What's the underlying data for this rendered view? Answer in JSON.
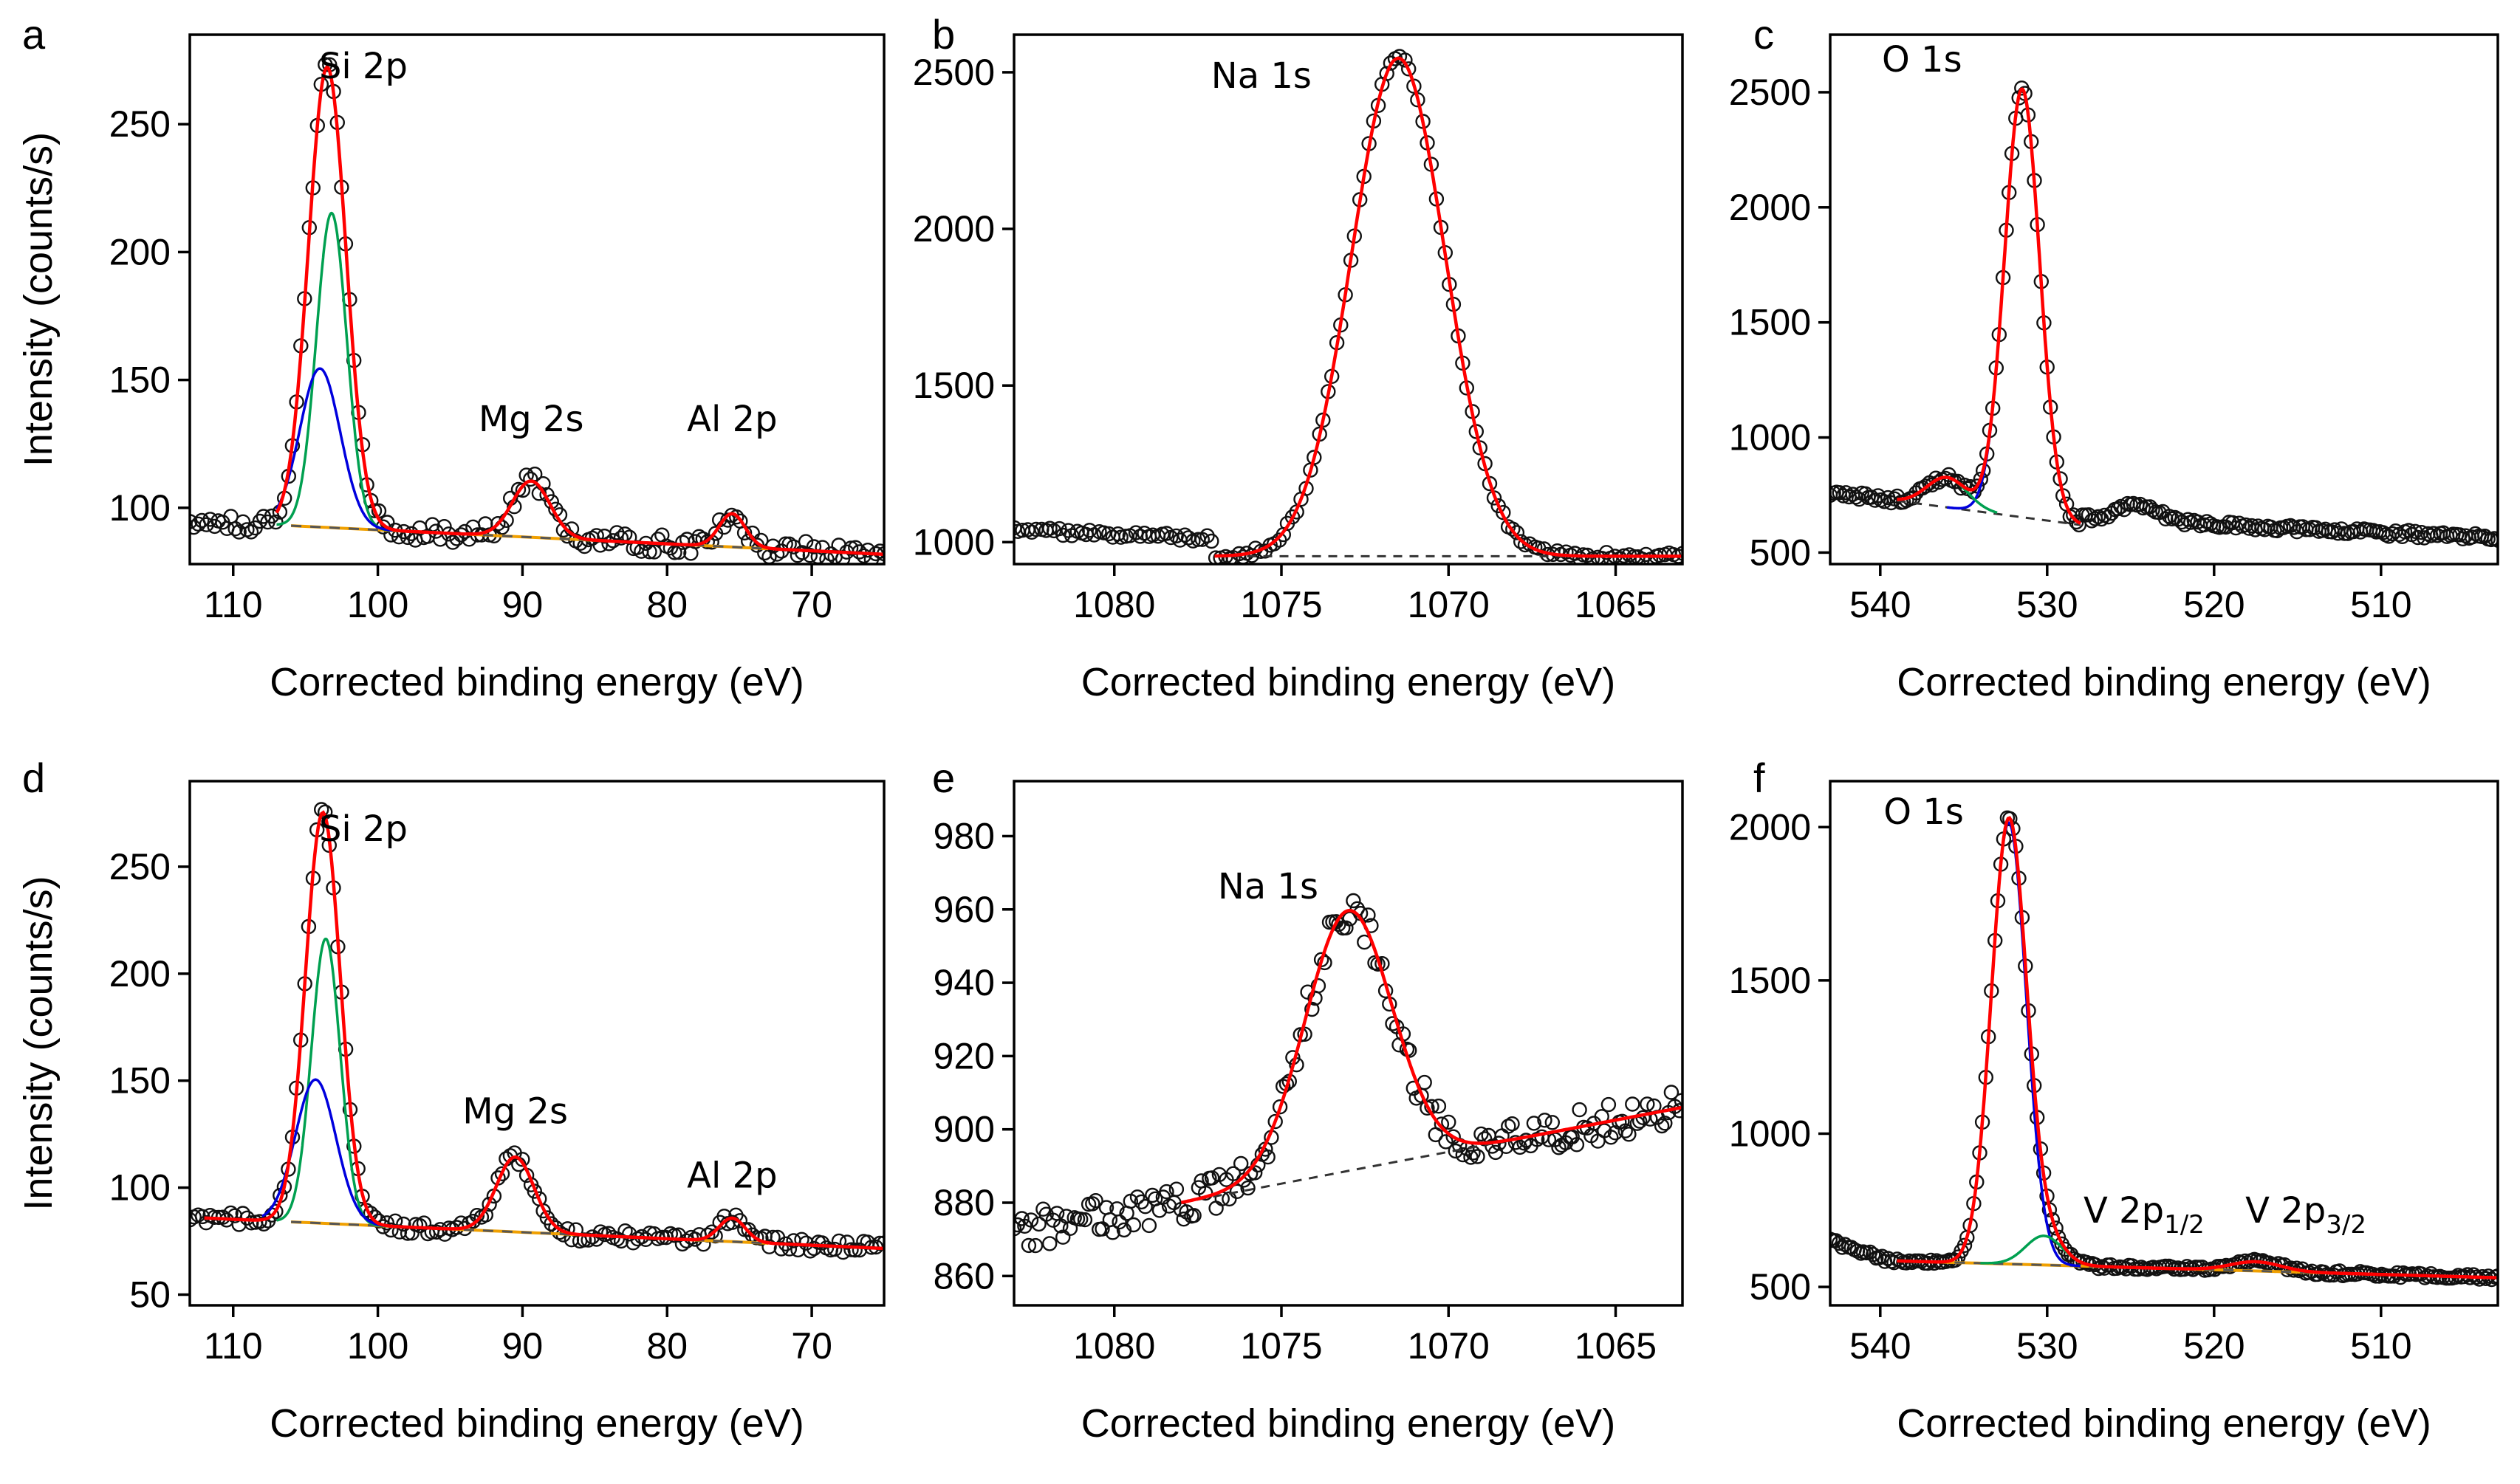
{
  "figure": {
    "y_axis_title": "Intensity (counts/s)",
    "x_axis_title": "Corrected binding energy (eV)"
  },
  "chart_data": [
    {
      "panel": "a",
      "type": "line",
      "xlabel": "Corrected binding energy (eV)",
      "ylabel": "Intensity (counts/s)",
      "xlim": [
        113,
        65
      ],
      "ylim": [
        78,
        285
      ],
      "xticks": [
        110,
        100,
        90,
        80,
        70
      ],
      "yticks": [
        100,
        150,
        200,
        250
      ],
      "annotations": [
        {
          "text": "Si 2p",
          "x": 101,
          "y": 268
        },
        {
          "text": "Mg 2s",
          "x": 89.4,
          "y": 130
        },
        {
          "text": "Al 2p",
          "x": 75.5,
          "y": 130
        }
      ],
      "background": {
        "type": "linear",
        "x": [
          106,
          73
        ],
        "y": [
          93,
          84
        ],
        "colors": [
          "#f0a000",
          "#555555"
        ]
      },
      "components": [
        {
          "name": "Si 2p fit",
          "color": "#ff0000",
          "peaks": [
            {
              "c": 103.5,
              "a": 180,
              "w": 1.3
            },
            {
              "c": 89.4,
              "a": 22,
              "w": 1.3
            },
            {
              "c": 75.5,
              "a": 13,
              "w": 0.9
            }
          ],
          "base": true,
          "xrange": [
            107,
            65
          ]
        },
        {
          "name": "Si 2p component 1",
          "color": "#00a050",
          "peaks": [
            {
              "c": 103.2,
              "a": 123,
              "w": 1.05
            }
          ],
          "base": true,
          "xrange": [
            107,
            99
          ]
        },
        {
          "name": "Si 2p component 2",
          "color": "#0000dd",
          "peaks": [
            {
              "c": 104.0,
              "a": 62,
              "w": 1.4
            }
          ],
          "base": true,
          "xrange": [
            107,
            99
          ]
        },
        {
          "name": "Al 2p component",
          "color": "#b040b0",
          "peaks": [
            {
              "c": 75.5,
              "a": 13,
              "w": 0.9
            }
          ],
          "base": true,
          "xrange": [
            78,
            72
          ]
        }
      ],
      "data_points": {
        "x_from": 113,
        "x_to": 65,
        "count": 170,
        "noise": 3.5,
        "signal": "fit"
      }
    },
    {
      "panel": "b",
      "type": "line",
      "xlabel": "Corrected binding energy (eV)",
      "ylabel": "",
      "xlim": [
        1083,
        1063
      ],
      "ylim": [
        930,
        2620
      ],
      "xticks": [
        1080,
        1075,
        1070,
        1065
      ],
      "yticks": [
        1000,
        1500,
        2000,
        2500
      ],
      "annotations": [
        {
          "text": "Na 1s",
          "x": 1075.6,
          "y": 2450
        }
      ],
      "background": {
        "type": "linear",
        "x": [
          1077,
          1063
        ],
        "y": [
          955,
          955
        ],
        "colors": [
          "#333333"
        ]
      },
      "components": [
        {
          "name": "Na 1s fit",
          "color": "#ff0000",
          "peaks": [
            {
              "c": 1071.5,
              "a": 1590,
              "w": 1.4
            }
          ],
          "base": true,
          "xrange": [
            1077,
            1063
          ]
        }
      ],
      "data_points": {
        "x_from": 1083,
        "x_to": 1063,
        "count": 150,
        "noise": 12,
        "signal": "fit",
        "pre_edge": {
          "x": 1077,
          "y_start": 1040,
          "slope": 14
        }
      }
    },
    {
      "panel": "c",
      "type": "line",
      "xlabel": "Corrected binding energy (eV)",
      "ylabel": "",
      "xlim": [
        543,
        503
      ],
      "ylim": [
        450,
        2750
      ],
      "xticks": [
        540,
        530,
        520,
        510
      ],
      "yticks": [
        500,
        1000,
        1500,
        2000,
        2500
      ],
      "annotations": [
        {
          "text": "O 1s",
          "x": 537.5,
          "y": 2590
        }
      ],
      "background": {
        "type": "linear",
        "x": [
          539,
          528
        ],
        "y": [
          725,
          620
        ],
        "colors": [
          "#333333"
        ]
      },
      "components": [
        {
          "name": "O 1s fit",
          "color": "#ff0000",
          "peaks": [
            {
              "c": 531.5,
              "a": 1860,
              "w": 1.05
            },
            {
              "c": 536.0,
              "a": 130,
              "w": 1.2
            }
          ],
          "base": true,
          "xrange": [
            539,
            528
          ]
        },
        {
          "name": "O 1s component 1",
          "color": "#0000dd",
          "peaks": [
            {
              "c": 531.5,
              "a": 1860,
              "w": 1.05
            }
          ],
          "base": true,
          "xrange": [
            536,
            528
          ]
        },
        {
          "name": "O 1s component 2",
          "color": "#00a050",
          "peaks": [
            {
              "c": 536.0,
              "a": 130,
              "w": 1.2
            }
          ],
          "base": true,
          "xrange": [
            539,
            533
          ]
        }
      ],
      "data_points": {
        "x_from": 543,
        "x_to": 503,
        "count": 210,
        "noise": 15,
        "signal": "fit",
        "extra_peak": {
          "c": 524.5,
          "a": 70,
          "w": 1.2
        },
        "tail": {
          "x": 528,
          "y_start": 650,
          "slope": 3.5
        }
      }
    },
    {
      "panel": "d",
      "type": "line",
      "xlabel": "Corrected binding energy (eV)",
      "ylabel": "Intensity (counts/s)",
      "xlim": [
        113,
        65
      ],
      "ylim": [
        45,
        290
      ],
      "xticks": [
        110,
        100,
        90,
        80,
        70
      ],
      "yticks": [
        50,
        100,
        150,
        200,
        250
      ],
      "annotations": [
        {
          "text": "Si 2p",
          "x": 101,
          "y": 262
        },
        {
          "text": "Mg 2s",
          "x": 90.5,
          "y": 130
        },
        {
          "text": "Al 2p",
          "x": 75.5,
          "y": 100
        }
      ],
      "background": {
        "type": "linear",
        "x": [
          106,
          73
        ],
        "y": [
          84,
          74
        ],
        "colors": [
          "#f0a000",
          "#555555"
        ]
      },
      "components": [
        {
          "name": "Si 2p fit",
          "color": "#ff0000",
          "peaks": [
            {
              "c": 103.8,
              "a": 192,
              "w": 1.2
            },
            {
              "c": 90.5,
              "a": 35,
              "w": 1.3
            },
            {
              "c": 75.5,
              "a": 11,
              "w": 0.9
            }
          ],
          "base": true,
          "xrange": [
            112,
            65
          ]
        },
        {
          "name": "Si 2p component 1",
          "color": "#00a050",
          "peaks": [
            {
              "c": 103.6,
              "a": 133,
              "w": 1.0
            }
          ],
          "base": true,
          "xrange": [
            107,
            99
          ]
        },
        {
          "name": "Si 2p component 2",
          "color": "#0000dd",
          "peaks": [
            {
              "c": 104.3,
              "a": 67,
              "w": 1.4
            }
          ],
          "base": true,
          "xrange": [
            108,
            99
          ]
        },
        {
          "name": "Al 2p component",
          "color": "#b040b0",
          "peaks": [
            {
              "c": 75.5,
              "a": 11,
              "w": 0.9
            }
          ],
          "base": true,
          "xrange": [
            78,
            72
          ]
        }
      ],
      "data_points": {
        "x_from": 113,
        "x_to": 65,
        "count": 170,
        "noise": 3,
        "signal": "fit"
      }
    },
    {
      "panel": "e",
      "type": "line",
      "xlabel": "Corrected binding energy (eV)",
      "ylabel": "",
      "xlim": [
        1083,
        1063
      ],
      "ylim": [
        852,
        995
      ],
      "xticks": [
        1080,
        1075,
        1070,
        1065
      ],
      "yticks": [
        860,
        880,
        900,
        920,
        940,
        960,
        980
      ],
      "annotations": [
        {
          "text": "Na 1s",
          "x": 1075.4,
          "y": 963
        }
      ],
      "background": {
        "type": "linear",
        "x": [
          1078,
          1063
        ],
        "y": [
          880,
          906
        ],
        "colors": [
          "#333333"
        ]
      },
      "components": [
        {
          "name": "Na 1s fit",
          "color": "#ff0000",
          "peaks": [
            {
              "c": 1073.0,
              "a": 71,
              "w": 1.3
            }
          ],
          "base": true,
          "xrange": [
            1078,
            1063
          ]
        }
      ],
      "data_points": {
        "x_from": 1083,
        "x_to": 1063,
        "count": 190,
        "noise": 5,
        "signal": "fit",
        "pre_edge": {
          "x": 1078,
          "y_start": 872,
          "slope": 1.5
        }
      }
    },
    {
      "panel": "f",
      "type": "line",
      "xlabel": "Corrected binding energy (eV)",
      "ylabel": "",
      "xlim": [
        543,
        503
      ],
      "ylim": [
        440,
        2150
      ],
      "xticks": [
        540,
        530,
        520,
        510
      ],
      "yticks": [
        500,
        1000,
        1500,
        2000
      ],
      "annotations": [
        {
          "text": "O 1s",
          "x": 537.4,
          "y": 2010
        },
        {
          "text": "V 2p",
          "sub": "1/2",
          "x": 524.2,
          "y": 710
        },
        {
          "text": "V 2p",
          "sub": "3/2",
          "x": 514.5,
          "y": 710
        }
      ],
      "background": {
        "type": "linear",
        "x": [
          539,
          503
        ],
        "y": [
          585,
          530
        ],
        "colors": [
          "#f0a000",
          "#555555"
        ]
      },
      "components": [
        {
          "name": "O 1s fit",
          "color": "#ff0000",
          "peaks": [
            {
              "c": 532.3,
              "a": 1440,
              "w": 1.05
            },
            {
              "c": 530.2,
              "a": 95,
              "w": 1.1
            },
            {
              "c": 517.5,
              "a": 30,
              "w": 1.5
            }
          ],
          "base": true,
          "xrange": [
            539,
            503
          ]
        },
        {
          "name": "O 1s component 1",
          "color": "#0000dd",
          "peaks": [
            {
              "c": 532.3,
              "a": 1440,
              "w": 1.05
            }
          ],
          "base": true,
          "xrange": [
            536,
            528
          ]
        },
        {
          "name": "V 2p component",
          "color": "#00a050",
          "peaks": [
            {
              "c": 530.2,
              "a": 95,
              "w": 1.1
            }
          ],
          "base": true,
          "xrange": [
            534,
            527
          ]
        }
      ],
      "data_points": {
        "x_from": 543,
        "x_to": 503,
        "count": 220,
        "noise": 8,
        "signal": "fit",
        "pre_edge": {
          "x": 539,
          "y_start": 650,
          "slope": 18
        }
      }
    }
  ]
}
